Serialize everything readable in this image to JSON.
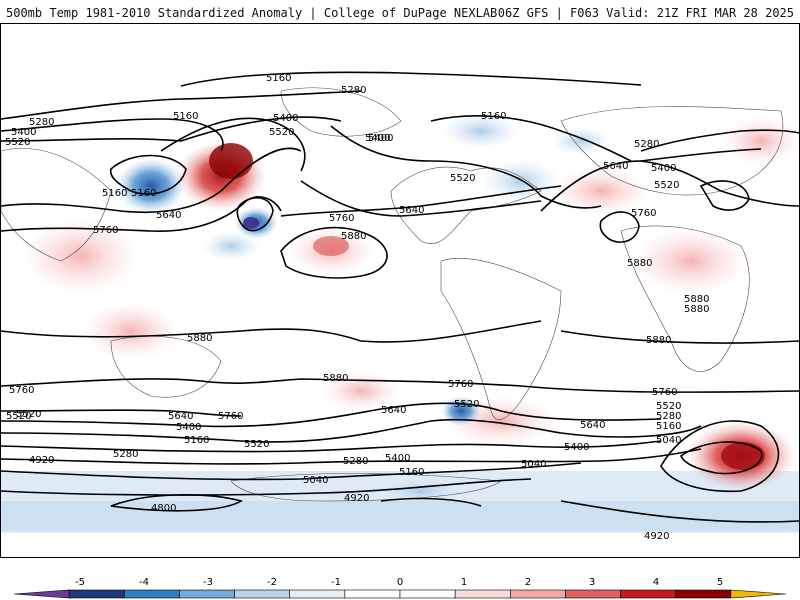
{
  "header": {
    "left_title": "500mb Temp 1981-2010 Standardized Anomaly | College of DuPage NEXLAB",
    "right_title": "06Z GFS | F063 Valid: 21Z FRI MAR 28 2025"
  },
  "contour_labels": {
    "l1": "5160",
    "l2": "5280",
    "l3": "5160",
    "l4": "5280",
    "l5": "5400",
    "l6": "5520",
    "l7": "5160",
    "l8": "5400",
    "l9": "5520",
    "l10": "5160",
    "l11": "5640",
    "l12": "5760",
    "l13": "5400",
    "l14": "5520",
    "l15": "5640",
    "l16": "5760",
    "l17": "5880",
    "l18": "5160",
    "l19": "5280",
    "l20": "5640",
    "l21": "5400",
    "l22": "5520",
    "l23": "5760",
    "l24": "5880",
    "l25": "5880",
    "l26": "5880",
    "l27": "5880",
    "l28": "5880",
    "l29": "5880",
    "l30": "5760",
    "l31": "5520",
    "l32": "5640",
    "l33": "5400",
    "l34": "5160",
    "l35": "5760",
    "l36": "5520",
    "l37": "5280",
    "l38": "4920",
    "l39": "5280",
    "l40": "5400",
    "l41": "5160",
    "l42": "5040",
    "l43": "4920",
    "l44": "4800",
    "l45": "5760",
    "l46": "5640",
    "l47": "5520",
    "l48": "5400",
    "l49": "5040",
    "l50": "5640",
    "l51": "5760",
    "l52": "5520",
    "l53": "5280",
    "l54": "5160",
    "l55": "5040",
    "l56": "4920",
    "l57": "5400",
    "l58": "5520"
  },
  "legend": {
    "ticks": [
      "-5",
      "-4",
      "-3",
      "-2",
      "-1",
      "0",
      "1",
      "2",
      "3",
      "4",
      "5"
    ],
    "colors": [
      "#6a3d9a",
      "#1f3a7a",
      "#2f7fc1",
      "#74a9d8",
      "#b8d3ea",
      "#e3eef7",
      "#ffffff",
      "#ffffff",
      "#f7dcdc",
      "#f0a8a8",
      "#e06060",
      "#c51b1b",
      "#8b0000",
      "#f2b700"
    ]
  }
}
